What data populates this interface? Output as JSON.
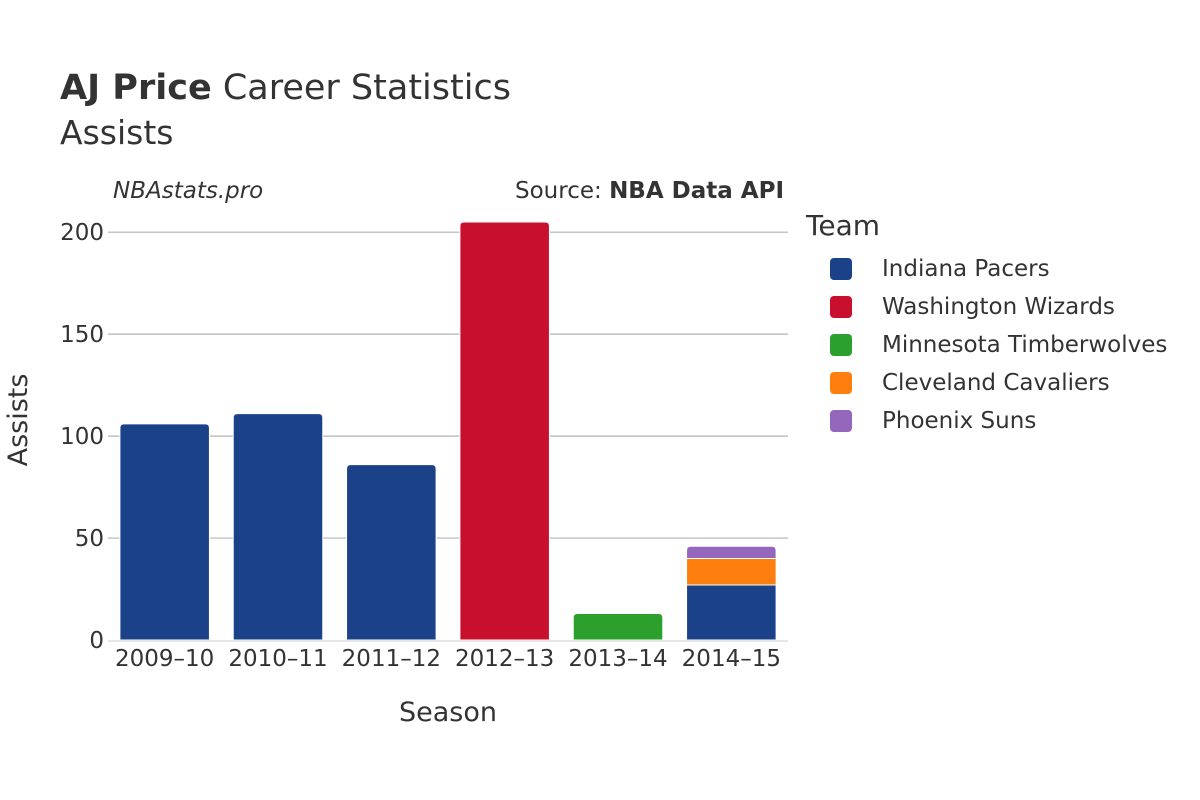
{
  "header": {
    "player_name": "AJ Price",
    "title_rest": "Career Statistics",
    "subtitle": "Assists",
    "watermark": "NBAstats.pro",
    "source_prefix": "Source: ",
    "source_name": "NBA Data API"
  },
  "legend": {
    "title": "Team",
    "items": [
      {
        "label": "Indiana Pacers",
        "color": "#1b4288"
      },
      {
        "label": "Washington Wizards",
        "color": "#c8102e"
      },
      {
        "label": "Minnesota Timberwolves",
        "color": "#2ca02c"
      },
      {
        "label": "Cleveland Cavaliers",
        "color": "#ff7f0e"
      },
      {
        "label": "Phoenix Suns",
        "color": "#9467bd"
      }
    ]
  },
  "chart_data": {
    "type": "bar",
    "stacked": true,
    "title": "AJ Price Career Statistics",
    "subtitle": "Assists",
    "xlabel": "Season",
    "ylabel": "Assists",
    "ylim": [
      0,
      205
    ],
    "yticks": [
      0,
      50,
      100,
      150,
      200
    ],
    "categories": [
      "2009–10",
      "2010–11",
      "2011–12",
      "2012–13",
      "2013–14",
      "2014–15"
    ],
    "series": [
      {
        "name": "Indiana Pacers",
        "color": "#1b4288",
        "values": [
          106,
          111,
          86,
          0,
          0,
          27
        ]
      },
      {
        "name": "Washington Wizards",
        "color": "#c8102e",
        "values": [
          0,
          0,
          0,
          205,
          0,
          0
        ]
      },
      {
        "name": "Minnesota Timberwolves",
        "color": "#2ca02c",
        "values": [
          0,
          0,
          0,
          0,
          13,
          0
        ]
      },
      {
        "name": "Cleveland Cavaliers",
        "color": "#ff7f0e",
        "values": [
          0,
          0,
          0,
          0,
          0,
          13
        ]
      },
      {
        "name": "Phoenix Suns",
        "color": "#9467bd",
        "values": [
          0,
          0,
          0,
          0,
          0,
          6
        ]
      }
    ]
  }
}
